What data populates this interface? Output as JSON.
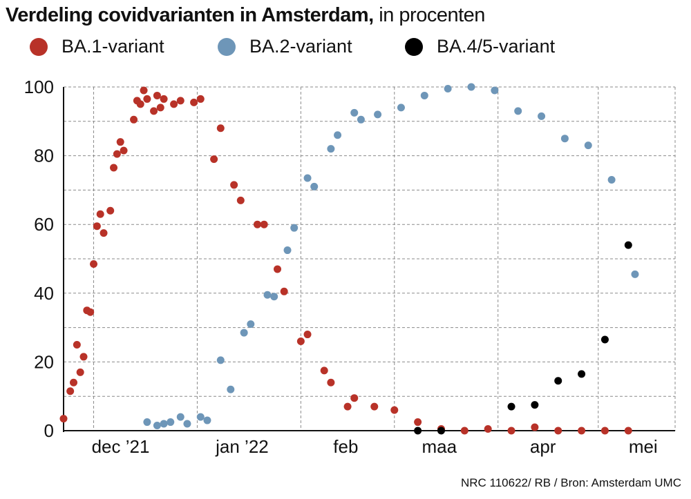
{
  "title": {
    "bold": "Verdeling covidvarianten in Amsterdam,",
    "light": " in procenten"
  },
  "footer": "NRC 110622/ RB / Bron: Amsterdam UMC",
  "legend": [
    {
      "label": "BA.1-variant",
      "color": "#b83228"
    },
    {
      "label": "BA.2-variant",
      "color": "#6e96b8"
    },
    {
      "label": "BA.4/5-variant",
      "color": "#000000"
    }
  ],
  "chart_data": {
    "type": "scatter",
    "ylim": [
      0,
      100
    ],
    "yticks": [
      0,
      20,
      40,
      60,
      80,
      100
    ],
    "xlim": [
      "2021-11-22",
      "2022-05-24"
    ],
    "xticks": [
      {
        "label": "dec ’21",
        "date": "2021-12-01"
      },
      {
        "label": "jan ’22",
        "date": "2022-01-01"
      },
      {
        "label": "feb",
        "date": "2022-02-01"
      },
      {
        "label": "maa",
        "date": "2022-03-01"
      },
      {
        "label": "apr",
        "date": "2022-04-01"
      },
      {
        "label": "mei",
        "date": "2022-05-01"
      }
    ],
    "grid": true,
    "series": [
      {
        "name": "BA.1-variant",
        "color": "#b83228",
        "points": [
          [
            "2021-11-22",
            3.5
          ],
          [
            "2021-11-24",
            11.5
          ],
          [
            "2021-11-25",
            14
          ],
          [
            "2021-11-26",
            25
          ],
          [
            "2021-11-27",
            17
          ],
          [
            "2021-11-28",
            21.5
          ],
          [
            "2021-11-29",
            35
          ],
          [
            "2021-11-30",
            34.5
          ],
          [
            "2021-12-01",
            48.5
          ],
          [
            "2021-12-02",
            59.5
          ],
          [
            "2021-12-03",
            63
          ],
          [
            "2021-12-04",
            57.5
          ],
          [
            "2021-12-06",
            64
          ],
          [
            "2021-12-07",
            76.5
          ],
          [
            "2021-12-08",
            80.5
          ],
          [
            "2021-12-09",
            84
          ],
          [
            "2021-12-10",
            81.5
          ],
          [
            "2021-12-13",
            90.5
          ],
          [
            "2021-12-14",
            96
          ],
          [
            "2021-12-15",
            95
          ],
          [
            "2021-12-16",
            99
          ],
          [
            "2021-12-17",
            96.5
          ],
          [
            "2021-12-19",
            93
          ],
          [
            "2021-12-20",
            97.5
          ],
          [
            "2021-12-21",
            94
          ],
          [
            "2021-12-22",
            96.5
          ],
          [
            "2021-12-25",
            95
          ],
          [
            "2021-12-27",
            96
          ],
          [
            "2021-12-31",
            95.5
          ],
          [
            "2022-01-02",
            96.5
          ],
          [
            "2022-01-06",
            79
          ],
          [
            "2022-01-08",
            88
          ],
          [
            "2022-01-12",
            71.5
          ],
          [
            "2022-01-14",
            67
          ],
          [
            "2022-01-19",
            60
          ],
          [
            "2022-01-21",
            60
          ],
          [
            "2022-01-25",
            47
          ],
          [
            "2022-01-27",
            40.5
          ],
          [
            "2022-02-01",
            26
          ],
          [
            "2022-02-03",
            28
          ],
          [
            "2022-02-08",
            17.5
          ],
          [
            "2022-02-10",
            14
          ],
          [
            "2022-02-15",
            7
          ],
          [
            "2022-02-17",
            9.5
          ],
          [
            "2022-02-23",
            7
          ],
          [
            "2022-03-01",
            6
          ],
          [
            "2022-03-08",
            2.5
          ],
          [
            "2022-03-15",
            0.5
          ],
          [
            "2022-03-22",
            0
          ],
          [
            "2022-03-29",
            0.5
          ],
          [
            "2022-04-05",
            0
          ],
          [
            "2022-04-12",
            1
          ],
          [
            "2022-04-19",
            0
          ],
          [
            "2022-04-26",
            0
          ],
          [
            "2022-05-03",
            0
          ],
          [
            "2022-05-10",
            0
          ]
        ]
      },
      {
        "name": "BA.2-variant",
        "color": "#6e96b8",
        "points": [
          [
            "2021-12-17",
            2.5
          ],
          [
            "2021-12-20",
            1.5
          ],
          [
            "2021-12-22",
            2
          ],
          [
            "2021-12-24",
            2.5
          ],
          [
            "2021-12-27",
            4
          ],
          [
            "2021-12-29",
            2
          ],
          [
            "2022-01-02",
            4
          ],
          [
            "2022-01-04",
            3
          ],
          [
            "2022-01-08",
            20.5
          ],
          [
            "2022-01-11",
            12
          ],
          [
            "2022-01-15",
            28.5
          ],
          [
            "2022-01-17",
            31
          ],
          [
            "2022-01-22",
            39.5
          ],
          [
            "2022-01-24",
            39
          ],
          [
            "2022-01-28",
            52.5
          ],
          [
            "2022-01-30",
            59
          ],
          [
            "2022-02-03",
            73.5
          ],
          [
            "2022-02-05",
            71
          ],
          [
            "2022-02-10",
            82
          ],
          [
            "2022-02-12",
            86
          ],
          [
            "2022-02-17",
            92.5
          ],
          [
            "2022-02-19",
            90.5
          ],
          [
            "2022-02-24",
            92
          ],
          [
            "2022-03-03",
            94
          ],
          [
            "2022-03-10",
            97.5
          ],
          [
            "2022-03-17",
            99.5
          ],
          [
            "2022-03-24",
            100
          ],
          [
            "2022-03-31",
            99
          ],
          [
            "2022-04-07",
            93
          ],
          [
            "2022-04-14",
            91.5
          ],
          [
            "2022-04-21",
            85
          ],
          [
            "2022-04-28",
            83
          ],
          [
            "2022-05-05",
            73
          ],
          [
            "2022-05-12",
            45.5
          ]
        ]
      },
      {
        "name": "BA.4/5-variant",
        "color": "#000000",
        "points": [
          [
            "2022-03-08",
            0
          ],
          [
            "2022-03-15",
            0
          ],
          [
            "2022-04-05",
            7
          ],
          [
            "2022-04-12",
            7.5
          ],
          [
            "2022-04-19",
            14.5
          ],
          [
            "2022-04-26",
            16.5
          ],
          [
            "2022-05-03",
            26.5
          ],
          [
            "2022-05-10",
            54
          ]
        ]
      }
    ]
  }
}
